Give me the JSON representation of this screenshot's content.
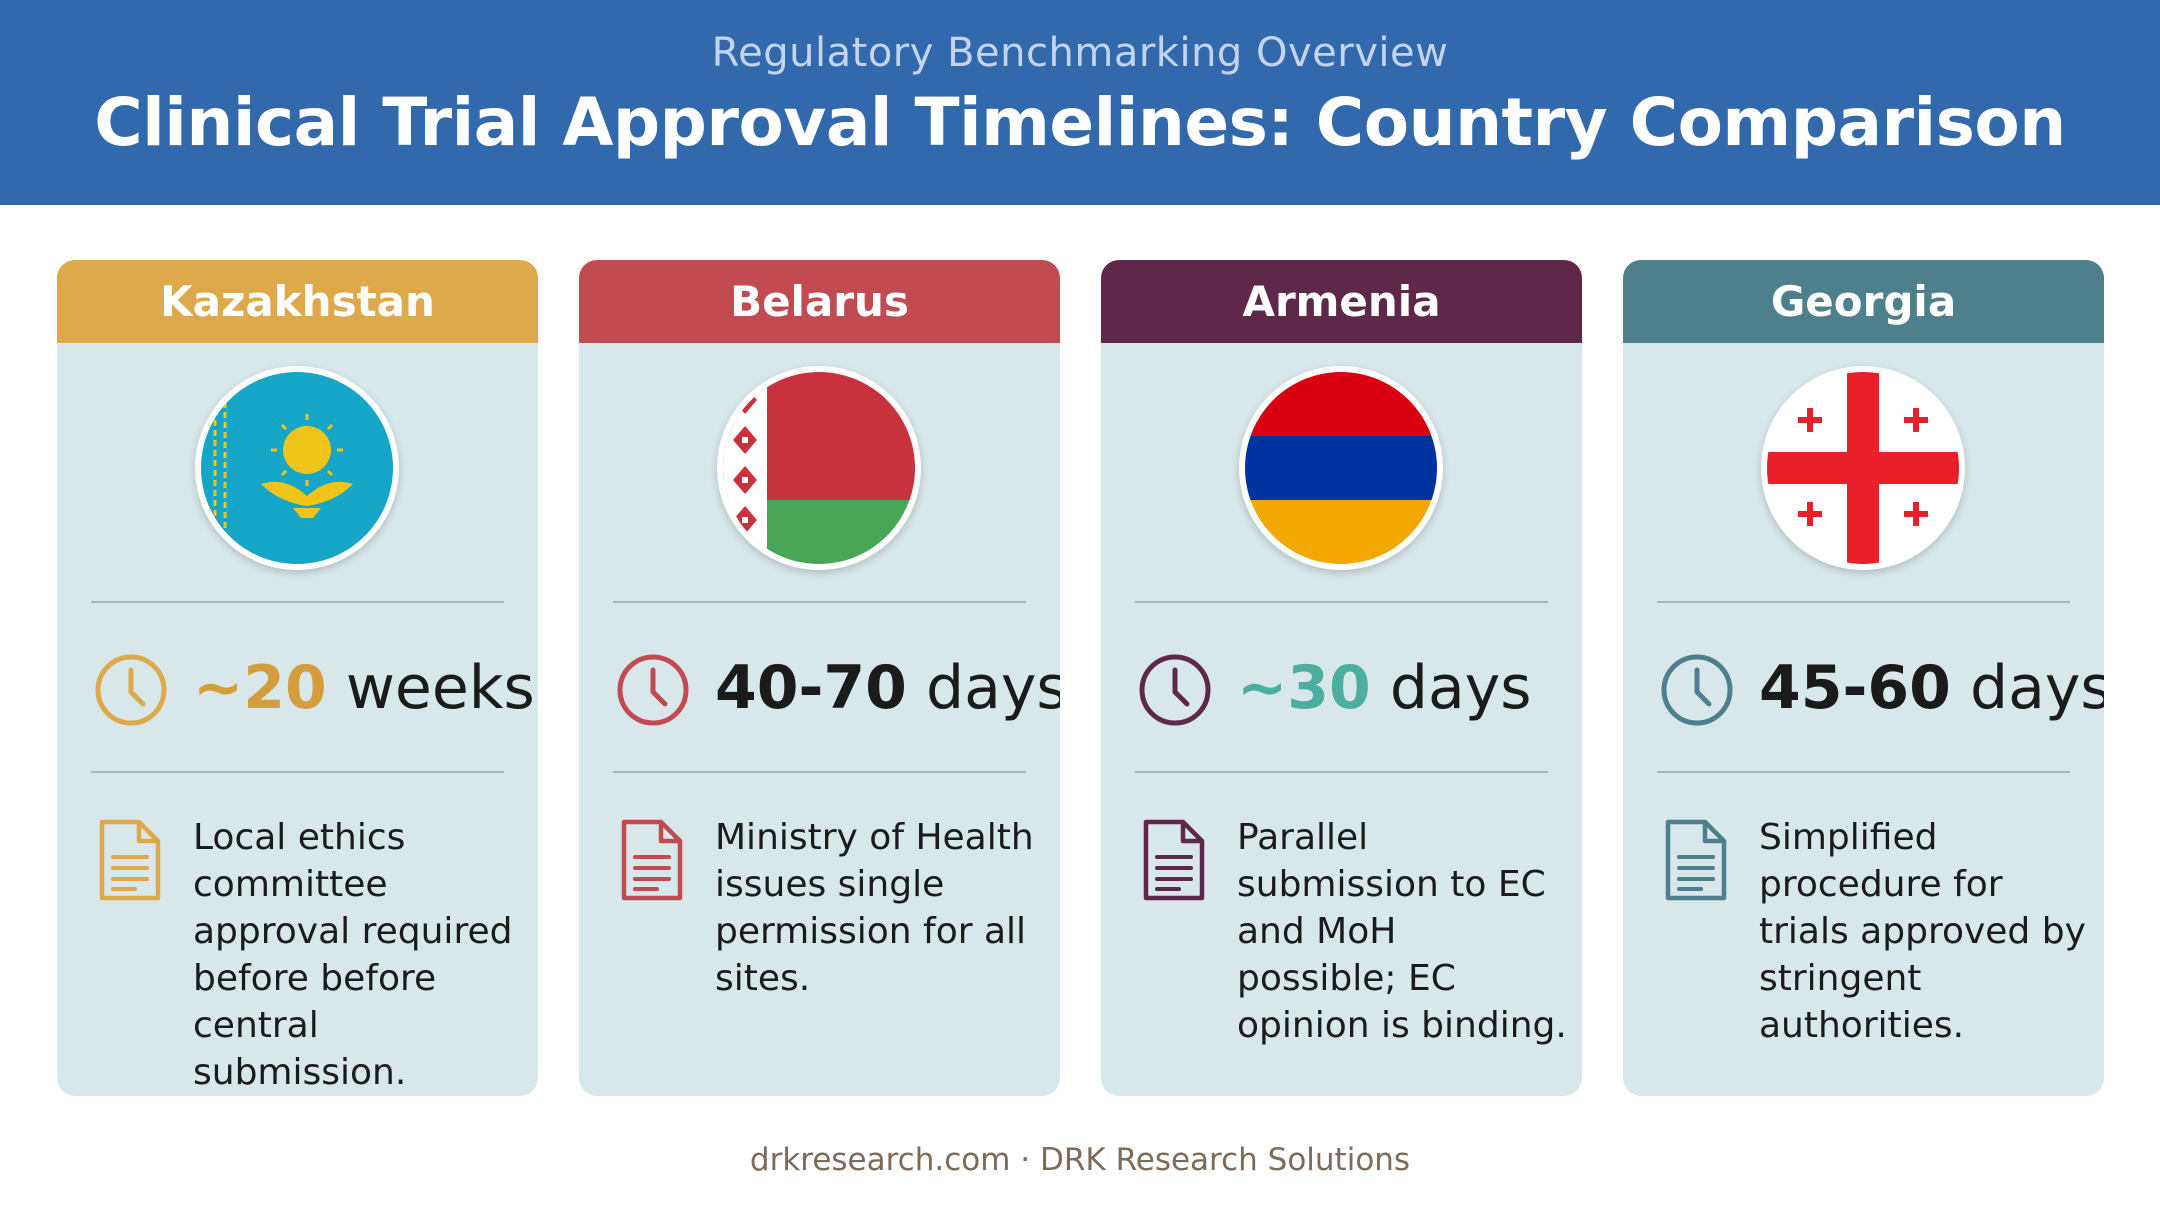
{
  "header": {
    "subtitle": "Regulatory Benchmarking Overview",
    "title": "Clinical Trial Approval Timelines: Country Comparison"
  },
  "countries": [
    {
      "name": "Kazakhstan",
      "accent": "#dda94a",
      "timeline_number": "~20",
      "timeline_unit": "weeks",
      "number_color": "#d39d3b",
      "description": "Local ethics committee approval required before before central submission.",
      "flag_icon": "kazakhstan-flag-icon"
    },
    {
      "name": "Belarus",
      "accent": "#c24b52",
      "timeline_number": "40-70",
      "timeline_unit": "days",
      "number_color": "#1b1b1b",
      "description": "Ministry of Health issues single permission for all sites.",
      "flag_icon": "belarus-flag-icon"
    },
    {
      "name": "Armenia",
      "accent": "#5e2849",
      "timeline_number": "~30",
      "timeline_unit": "days",
      "number_color": "#4caf9e",
      "description": "Parallel submission to EC and MoH possible; EC opinion is binding.",
      "flag_icon": "armenia-flag-icon"
    },
    {
      "name": "Georgia",
      "accent": "#4d7f8c",
      "timeline_number": "45-60",
      "timeline_unit": "days",
      "number_color": "#1b1b1b",
      "description": "Simplified procedure for trials approved by stringent authorities.",
      "flag_icon": "georgia-flag-icon"
    }
  ],
  "footer": {
    "text": "drkresearch.com · DRK Research Solutions"
  }
}
